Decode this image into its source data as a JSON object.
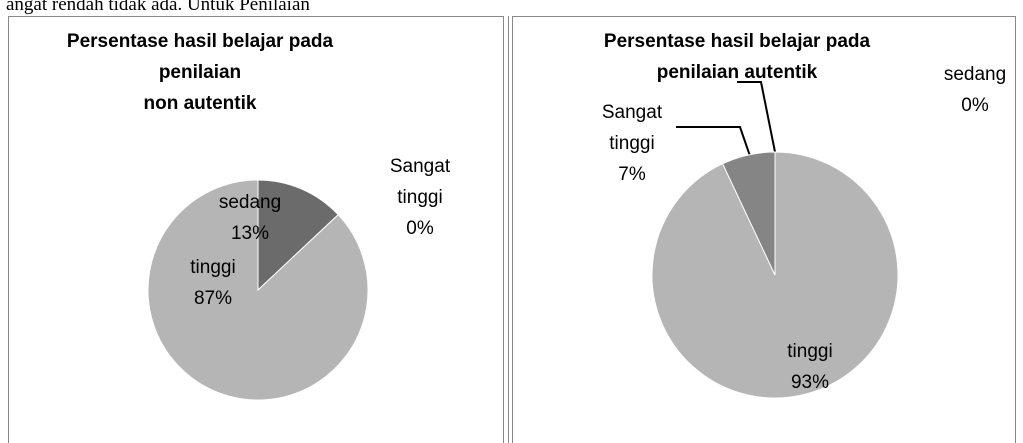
{
  "caption": "angat  rendah  tidak  ada.  Untuk  Penilaian",
  "chart_data": [
    {
      "type": "pie",
      "title": [
        "Persentase hasil belajar pada",
        "penilaian",
        "non autentik"
      ],
      "categories": [
        "sedang",
        "tinggi",
        "Sangat tinggi"
      ],
      "values": [
        13,
        87,
        0
      ],
      "value_labels": [
        "13%",
        "87%",
        "0%"
      ],
      "colors": [
        "#6b6b6b",
        "#b5b5b5",
        "#858585"
      ]
    },
    {
      "type": "pie",
      "title": [
        "Persentase hasil belajar pada",
        "penilaian autentik"
      ],
      "categories": [
        "sedang",
        "tinggi",
        "Sangat tinggi"
      ],
      "values": [
        0,
        93,
        7
      ],
      "value_labels": [
        "0%",
        "93%",
        "7%"
      ],
      "colors": [
        "#6b6b6b",
        "#b5b5b5",
        "#858585"
      ]
    }
  ]
}
